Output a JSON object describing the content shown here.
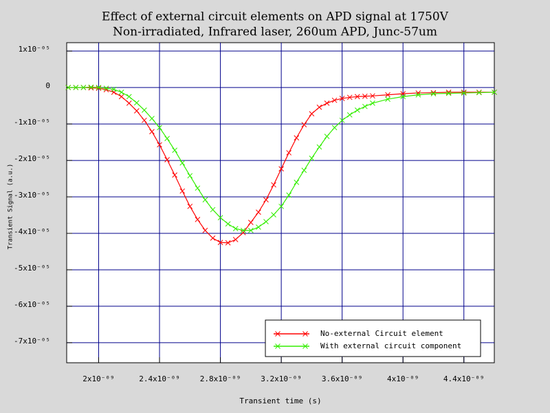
{
  "chart_data": {
    "type": "line",
    "title": "Effect of external circuit elements on APD signal at 1750V",
    "subtitle": "Non-irradiated, Infrared laser, 260um APD, Junc-57um",
    "x_label": "Transient time (s)",
    "y_label": "Transient Signal (a.u.)",
    "x": [
      1.8e-09,
      1.85e-09,
      1.9e-09,
      1.95e-09,
      2e-09,
      2.05e-09,
      2.1e-09,
      2.15e-09,
      2.2e-09,
      2.25e-09,
      2.3e-09,
      2.35e-09,
      2.4e-09,
      2.45e-09,
      2.5e-09,
      2.55e-09,
      2.6e-09,
      2.65e-09,
      2.7e-09,
      2.75e-09,
      2.8e-09,
      2.85e-09,
      2.9e-09,
      2.95e-09,
      3e-09,
      3.05e-09,
      3.1e-09,
      3.15e-09,
      3.2e-09,
      3.25e-09,
      3.3e-09,
      3.35e-09,
      3.4e-09,
      3.45e-09,
      3.5e-09,
      3.55e-09,
      3.6e-09,
      3.65e-09,
      3.7e-09,
      3.75e-09,
      3.8e-09,
      3.9e-09,
      4e-09,
      4.1e-09,
      4.2e-09,
      4.3e-09,
      4.4e-09,
      4.5e-09,
      4.6e-09
    ],
    "series": [
      {
        "name": "No-external Circuit element",
        "color": "#ff0000",
        "values": [
          0,
          0,
          0,
          -1e-07,
          -2e-07,
          -6e-07,
          -1.3e-06,
          -2.5e-06,
          -4.3e-06,
          -6.4e-06,
          -9e-06,
          -1.21e-05,
          -1.57e-05,
          -1.98e-05,
          -2.4e-05,
          -2.84e-05,
          -3.26e-05,
          -3.62e-05,
          -3.92e-05,
          -4.13e-05,
          -4.25e-05,
          -4.26e-05,
          -4.17e-05,
          -3.98e-05,
          -3.7e-05,
          -3.42e-05,
          -3.08e-05,
          -2.67e-05,
          -2.23e-05,
          -1.79e-05,
          -1.38e-05,
          -1.02e-05,
          -7.2e-06,
          -5.4e-06,
          -4.3e-06,
          -3.5e-06,
          -3e-06,
          -2.7e-06,
          -2.5e-06,
          -2.4e-06,
          -2.3e-06,
          -2e-06,
          -1.7e-06,
          -1.5e-06,
          -1.4e-06,
          -1.3e-06,
          -1.3e-06,
          -1.3e-06,
          -1.3e-06
        ]
      },
      {
        "name": "With external circuit component",
        "color": "#33ee00",
        "values": [
          0,
          0,
          0,
          1e-07,
          0,
          -2e-07,
          -5e-07,
          -1.3e-06,
          -2.5e-06,
          -4.2e-06,
          -6.2e-06,
          -8.5e-06,
          -1.1e-05,
          -1.4e-05,
          -1.72e-05,
          -2.07e-05,
          -2.42e-05,
          -2.76e-05,
          -3.08e-05,
          -3.35e-05,
          -3.57e-05,
          -3.74e-05,
          -3.87e-05,
          -3.92e-05,
          -3.92e-05,
          -3.83e-05,
          -3.68e-05,
          -3.49e-05,
          -3.26e-05,
          -2.95e-05,
          -2.6e-05,
          -2.27e-05,
          -1.94e-05,
          -1.63e-05,
          -1.34e-05,
          -1.1e-05,
          -9e-06,
          -7.5e-06,
          -6.2e-06,
          -5.2e-06,
          -4.3e-06,
          -3.2e-06,
          -2.5e-06,
          -2e-06,
          -1.7e-06,
          -1.6e-06,
          -1.5e-06,
          -1.4e-06,
          -1.3e-06
        ]
      }
    ],
    "xlim": [
      1.79e-09,
      4.6e-09
    ],
    "ylim": [
      -7.55e-05,
      1.23e-05
    ],
    "xticks": [
      {
        "value": 2e-09,
        "label": "2x10⁻⁰⁹"
      },
      {
        "value": 2.4e-09,
        "label": "2.4x10⁻⁰⁹"
      },
      {
        "value": 2.8e-09,
        "label": "2.8x10⁻⁰⁹"
      },
      {
        "value": 3.2e-09,
        "label": "3.2x10⁻⁰⁹"
      },
      {
        "value": 3.6e-09,
        "label": "3.6x10⁻⁰⁹"
      },
      {
        "value": 4e-09,
        "label": "4x10⁻⁰⁹"
      },
      {
        "value": 4.4e-09,
        "label": "4.4x10⁻⁰⁹"
      }
    ],
    "yticks": [
      {
        "value": 1e-05,
        "label": "1x10⁻⁰⁵"
      },
      0,
      {
        "value": -1e-05,
        "label": "-1x10⁻⁰⁵"
      },
      {
        "value": -2e-05,
        "label": "-2x10⁻⁰⁵"
      },
      {
        "value": -3e-05,
        "label": "-3x10⁻⁰⁵"
      },
      {
        "value": -4e-05,
        "label": "-4x10⁻⁰⁵"
      },
      {
        "value": -5e-05,
        "label": "-5x10⁻⁰⁵"
      },
      {
        "value": -6e-05,
        "label": "-6x10⁻⁰⁵"
      },
      {
        "value": -7e-05,
        "label": "-7x10⁻⁰⁵"
      }
    ],
    "grid": true,
    "grid_color": "#00008b",
    "legend": "lower right"
  }
}
